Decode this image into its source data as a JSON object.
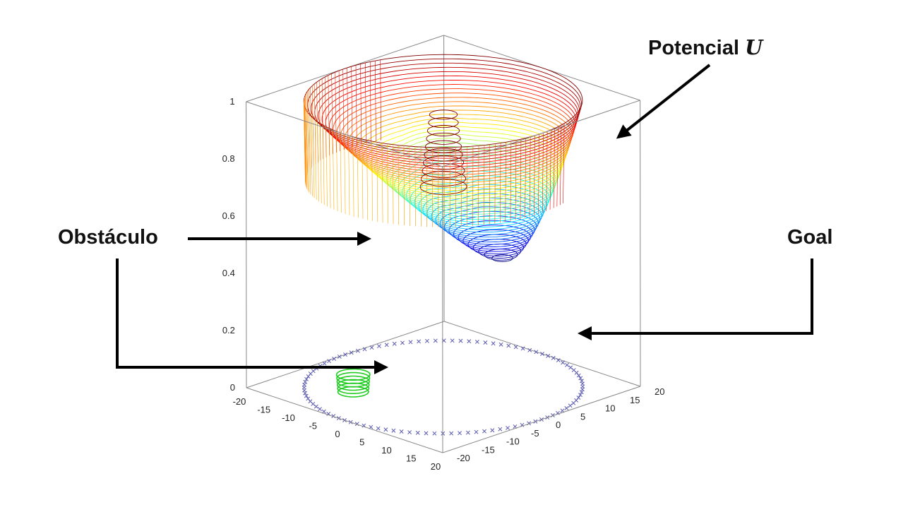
{
  "annotations": {
    "potential_label": "Potencial",
    "potential_symbol": "U",
    "obstacle_label": "Obstáculo",
    "goal_label": "Goal"
  },
  "axes": {
    "x_ticks": [
      "-20",
      "-15",
      "-10",
      "-5",
      "0",
      "5",
      "10",
      "15",
      "20"
    ],
    "y_ticks": [
      "-20",
      "-15",
      "-10",
      "-5",
      "0",
      "5",
      "10",
      "15",
      "20"
    ],
    "z_ticks": [
      "0",
      "0.2",
      "0.4",
      "0.6",
      "0.8",
      "1"
    ]
  },
  "colors": {
    "arrow": "#000000",
    "boundary_markers": "#5a5ab0",
    "obstacle_ring": "#22cc22",
    "box": "#888888",
    "contour_low": "#000080",
    "contour_high": "#800000"
  },
  "legend_icons": [
    "arrow-icon"
  ]
}
